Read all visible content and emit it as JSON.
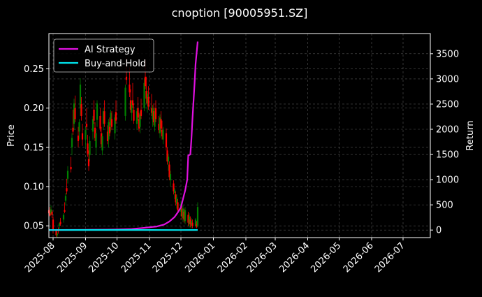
{
  "title": "cnoption [90005951.SZ]",
  "chart_data": {
    "type": "line",
    "title": "cnoption [90005951.SZ]",
    "xlabel": "",
    "ylabel": "Price",
    "y2label": "Return",
    "x_ticks": [
      "2025-08",
      "2025-09",
      "2025-10",
      "2025-11",
      "2025-12",
      "2026-01",
      "2026-02",
      "2026-03",
      "2026-04",
      "2026-05",
      "2026-06",
      "2026-07"
    ],
    "x_range": [
      "2025-07-28",
      "2026-07-27"
    ],
    "ylim": [
      0.035,
      0.295
    ],
    "y_ticks": [
      "0.05",
      "0.10",
      "0.15",
      "0.20",
      "0.25"
    ],
    "y2lim": [
      -150,
      3900
    ],
    "y2_ticks": [
      "0",
      "500",
      "1000",
      "1500",
      "2000",
      "2500",
      "3000",
      "3500"
    ],
    "grid": true,
    "legend_position": "top-left",
    "background": "#000000",
    "candle_up_color": "#008000",
    "candle_down_color": "#ff0000",
    "candlesticks": [
      [
        "2025-07-28",
        0.07,
        0.07,
        0.063,
        0.066
      ],
      [
        "2025-07-29",
        0.066,
        0.074,
        0.062,
        0.063
      ],
      [
        "2025-07-30",
        0.066,
        0.076,
        0.064,
        0.071
      ],
      [
        "2025-07-31",
        0.068,
        0.07,
        0.06,
        0.064
      ],
      [
        "2025-08-01",
        0.058,
        0.062,
        0.04,
        0.044
      ],
      [
        "2025-08-04",
        0.044,
        0.046,
        0.036,
        0.038
      ],
      [
        "2025-08-05",
        0.038,
        0.042,
        0.035,
        0.04
      ],
      [
        "2025-08-06",
        0.044,
        0.048,
        0.04,
        0.043
      ],
      [
        "2025-08-07",
        0.05,
        0.054,
        0.045,
        0.053
      ],
      [
        "2025-08-08",
        0.055,
        0.06,
        0.05,
        0.052
      ],
      [
        "2025-08-11",
        0.058,
        0.066,
        0.054,
        0.064
      ],
      [
        "2025-08-12",
        0.07,
        0.08,
        0.066,
        0.068
      ],
      [
        "2025-08-13",
        0.082,
        0.092,
        0.076,
        0.088
      ],
      [
        "2025-08-14",
        0.098,
        0.11,
        0.09,
        0.094
      ],
      [
        "2025-08-15",
        0.11,
        0.126,
        0.104,
        0.12
      ],
      [
        "2025-08-18",
        0.125,
        0.138,
        0.118,
        0.122
      ],
      [
        "2025-08-19",
        0.15,
        0.168,
        0.14,
        0.162
      ],
      [
        "2025-08-20",
        0.175,
        0.198,
        0.166,
        0.17
      ],
      [
        "2025-08-21",
        0.18,
        0.212,
        0.172,
        0.206
      ],
      [
        "2025-08-22",
        0.2,
        0.216,
        0.182,
        0.186
      ],
      [
        "2025-08-25",
        0.165,
        0.176,
        0.15,
        0.158
      ],
      [
        "2025-08-26",
        0.17,
        0.186,
        0.16,
        0.182
      ],
      [
        "2025-08-27",
        0.2,
        0.238,
        0.19,
        0.23
      ],
      [
        "2025-08-28",
        0.205,
        0.214,
        0.184,
        0.19
      ],
      [
        "2025-08-29",
        0.168,
        0.18,
        0.152,
        0.16
      ],
      [
        "2025-09-01",
        0.16,
        0.176,
        0.15,
        0.172
      ],
      [
        "2025-09-02",
        0.18,
        0.2,
        0.172,
        0.176
      ],
      [
        "2025-09-03",
        0.155,
        0.166,
        0.138,
        0.142
      ],
      [
        "2025-09-04",
        0.135,
        0.146,
        0.12,
        0.126
      ],
      [
        "2025-09-05",
        0.14,
        0.164,
        0.132,
        0.158
      ],
      [
        "2025-09-08",
        0.17,
        0.19,
        0.16,
        0.186
      ],
      [
        "2025-09-09",
        0.198,
        0.21,
        0.18,
        0.184
      ],
      [
        "2025-09-10",
        0.175,
        0.182,
        0.158,
        0.162
      ],
      [
        "2025-09-11",
        0.15,
        0.172,
        0.14,
        0.168
      ],
      [
        "2025-09-12",
        0.185,
        0.21,
        0.176,
        0.206
      ],
      [
        "2025-09-15",
        0.19,
        0.2,
        0.17,
        0.174
      ],
      [
        "2025-09-16",
        0.168,
        0.176,
        0.15,
        0.154
      ],
      [
        "2025-09-17",
        0.146,
        0.168,
        0.14,
        0.164
      ],
      [
        "2025-09-18",
        0.18,
        0.2,
        0.172,
        0.196
      ],
      [
        "2025-09-19",
        0.196,
        0.21,
        0.176,
        0.18
      ],
      [
        "2025-09-22",
        0.17,
        0.178,
        0.154,
        0.158
      ],
      [
        "2025-09-23",
        0.16,
        0.186,
        0.15,
        0.182
      ],
      [
        "2025-09-24",
        0.176,
        0.188,
        0.164,
        0.168
      ],
      [
        "2025-09-25",
        0.178,
        0.198,
        0.17,
        0.194
      ],
      [
        "2025-09-26",
        0.186,
        0.196,
        0.172,
        0.176
      ],
      [
        "2025-09-29",
        0.168,
        0.192,
        0.16,
        0.188
      ],
      [
        "2025-09-30",
        0.195,
        0.21,
        0.18,
        0.184
      ],
      [
        "2025-10-09",
        0.19,
        0.23,
        0.184,
        0.226
      ],
      [
        "2025-10-10",
        0.24,
        0.264,
        0.23,
        0.236
      ],
      [
        "2025-10-13",
        0.23,
        0.252,
        0.214,
        0.22
      ],
      [
        "2025-10-14",
        0.21,
        0.224,
        0.194,
        0.198
      ],
      [
        "2025-10-15",
        0.194,
        0.21,
        0.184,
        0.206
      ],
      [
        "2025-10-16",
        0.21,
        0.232,
        0.2,
        0.204
      ],
      [
        "2025-10-17",
        0.198,
        0.206,
        0.18,
        0.184
      ],
      [
        "2025-10-20",
        0.18,
        0.2,
        0.172,
        0.196
      ],
      [
        "2025-10-21",
        0.2,
        0.214,
        0.184,
        0.188
      ],
      [
        "2025-10-22",
        0.186,
        0.194,
        0.17,
        0.174
      ],
      [
        "2025-10-23",
        0.176,
        0.196,
        0.168,
        0.192
      ],
      [
        "2025-10-24",
        0.198,
        0.212,
        0.186,
        0.19
      ],
      [
        "2025-10-27",
        0.2,
        0.238,
        0.196,
        0.232
      ],
      [
        "2025-10-28",
        0.24,
        0.262,
        0.224,
        0.228
      ],
      [
        "2025-10-29",
        0.222,
        0.24,
        0.206,
        0.212
      ],
      [
        "2025-10-30",
        0.206,
        0.222,
        0.194,
        0.218
      ],
      [
        "2025-10-31",
        0.214,
        0.228,
        0.198,
        0.202
      ],
      [
        "2025-11-03",
        0.2,
        0.218,
        0.19,
        0.194
      ],
      [
        "2025-11-04",
        0.186,
        0.204,
        0.176,
        0.2
      ],
      [
        "2025-11-05",
        0.196,
        0.206,
        0.178,
        0.182
      ],
      [
        "2025-11-06",
        0.176,
        0.2,
        0.17,
        0.196
      ],
      [
        "2025-11-07",
        0.2,
        0.21,
        0.182,
        0.186
      ],
      [
        "2025-11-10",
        0.18,
        0.19,
        0.168,
        0.172
      ],
      [
        "2025-11-11",
        0.168,
        0.192,
        0.162,
        0.188
      ],
      [
        "2025-11-12",
        0.186,
        0.196,
        0.17,
        0.174
      ],
      [
        "2025-11-13",
        0.172,
        0.184,
        0.16,
        0.164
      ],
      [
        "2025-11-14",
        0.16,
        0.176,
        0.154,
        0.172
      ],
      [
        "2025-11-17",
        0.168,
        0.174,
        0.146,
        0.15
      ],
      [
        "2025-11-18",
        0.146,
        0.15,
        0.128,
        0.132
      ],
      [
        "2025-11-19",
        0.132,
        0.142,
        0.12,
        0.138
      ],
      [
        "2025-11-20",
        0.128,
        0.132,
        0.108,
        0.112
      ],
      [
        "2025-11-21",
        0.108,
        0.12,
        0.1,
        0.116
      ],
      [
        "2025-11-24",
        0.104,
        0.108,
        0.09,
        0.094
      ],
      [
        "2025-11-25",
        0.092,
        0.098,
        0.084,
        0.096
      ],
      [
        "2025-11-26",
        0.09,
        0.094,
        0.076,
        0.08
      ],
      [
        "2025-11-27",
        0.078,
        0.09,
        0.072,
        0.086
      ],
      [
        "2025-11-28",
        0.08,
        0.084,
        0.066,
        0.07
      ],
      [
        "2025-12-01",
        0.068,
        0.082,
        0.062,
        0.078
      ],
      [
        "2025-12-02",
        0.072,
        0.08,
        0.058,
        0.062
      ],
      [
        "2025-12-03",
        0.06,
        0.076,
        0.055,
        0.072
      ],
      [
        "2025-12-04",
        0.068,
        0.072,
        0.054,
        0.058
      ],
      [
        "2025-12-05",
        0.056,
        0.074,
        0.052,
        0.07
      ],
      [
        "2025-12-08",
        0.064,
        0.068,
        0.05,
        0.054
      ],
      [
        "2025-12-09",
        0.052,
        0.066,
        0.048,
        0.062
      ],
      [
        "2025-12-10",
        0.058,
        0.062,
        0.048,
        0.052
      ],
      [
        "2025-12-11",
        0.05,
        0.06,
        0.047,
        0.056
      ],
      [
        "2025-12-12",
        0.054,
        0.058,
        0.047,
        0.05
      ],
      [
        "2025-12-15",
        0.05,
        0.06,
        0.048,
        0.058
      ],
      [
        "2025-12-16",
        0.052,
        0.056,
        0.047,
        0.049
      ],
      [
        "2025-12-17",
        0.05,
        0.08,
        0.048,
        0.074
      ]
    ],
    "series": [
      {
        "name": "AI Strategy",
        "color": "#e011e0",
        "points": [
          [
            "2025-07-28",
            0
          ],
          [
            "2025-08-15",
            2
          ],
          [
            "2025-09-01",
            5
          ],
          [
            "2025-09-20",
            8
          ],
          [
            "2025-10-01",
            12
          ],
          [
            "2025-10-15",
            20
          ],
          [
            "2025-10-25",
            40
          ],
          [
            "2025-11-01",
            55
          ],
          [
            "2025-11-08",
            70
          ],
          [
            "2025-11-15",
            110
          ],
          [
            "2025-11-20",
            170
          ],
          [
            "2025-11-25",
            260
          ],
          [
            "2025-11-28",
            350
          ],
          [
            "2025-12-01",
            450
          ],
          [
            "2025-12-03",
            620
          ],
          [
            "2025-12-05",
            780
          ],
          [
            "2025-12-07",
            1000
          ],
          [
            "2025-12-08",
            1480
          ],
          [
            "2025-12-10",
            1500
          ],
          [
            "2025-12-11",
            1800
          ],
          [
            "2025-12-12",
            2200
          ],
          [
            "2025-12-14",
            2900
          ],
          [
            "2025-12-15",
            3300
          ],
          [
            "2025-12-17",
            3740
          ]
        ]
      },
      {
        "name": "Buy-and-Hold",
        "color": "#00e5ee",
        "points": [
          [
            "2025-07-28",
            0
          ],
          [
            "2025-09-01",
            1
          ],
          [
            "2025-10-01",
            1
          ],
          [
            "2025-11-01",
            1
          ],
          [
            "2025-12-01",
            0
          ],
          [
            "2025-12-17",
            1
          ]
        ]
      }
    ]
  }
}
